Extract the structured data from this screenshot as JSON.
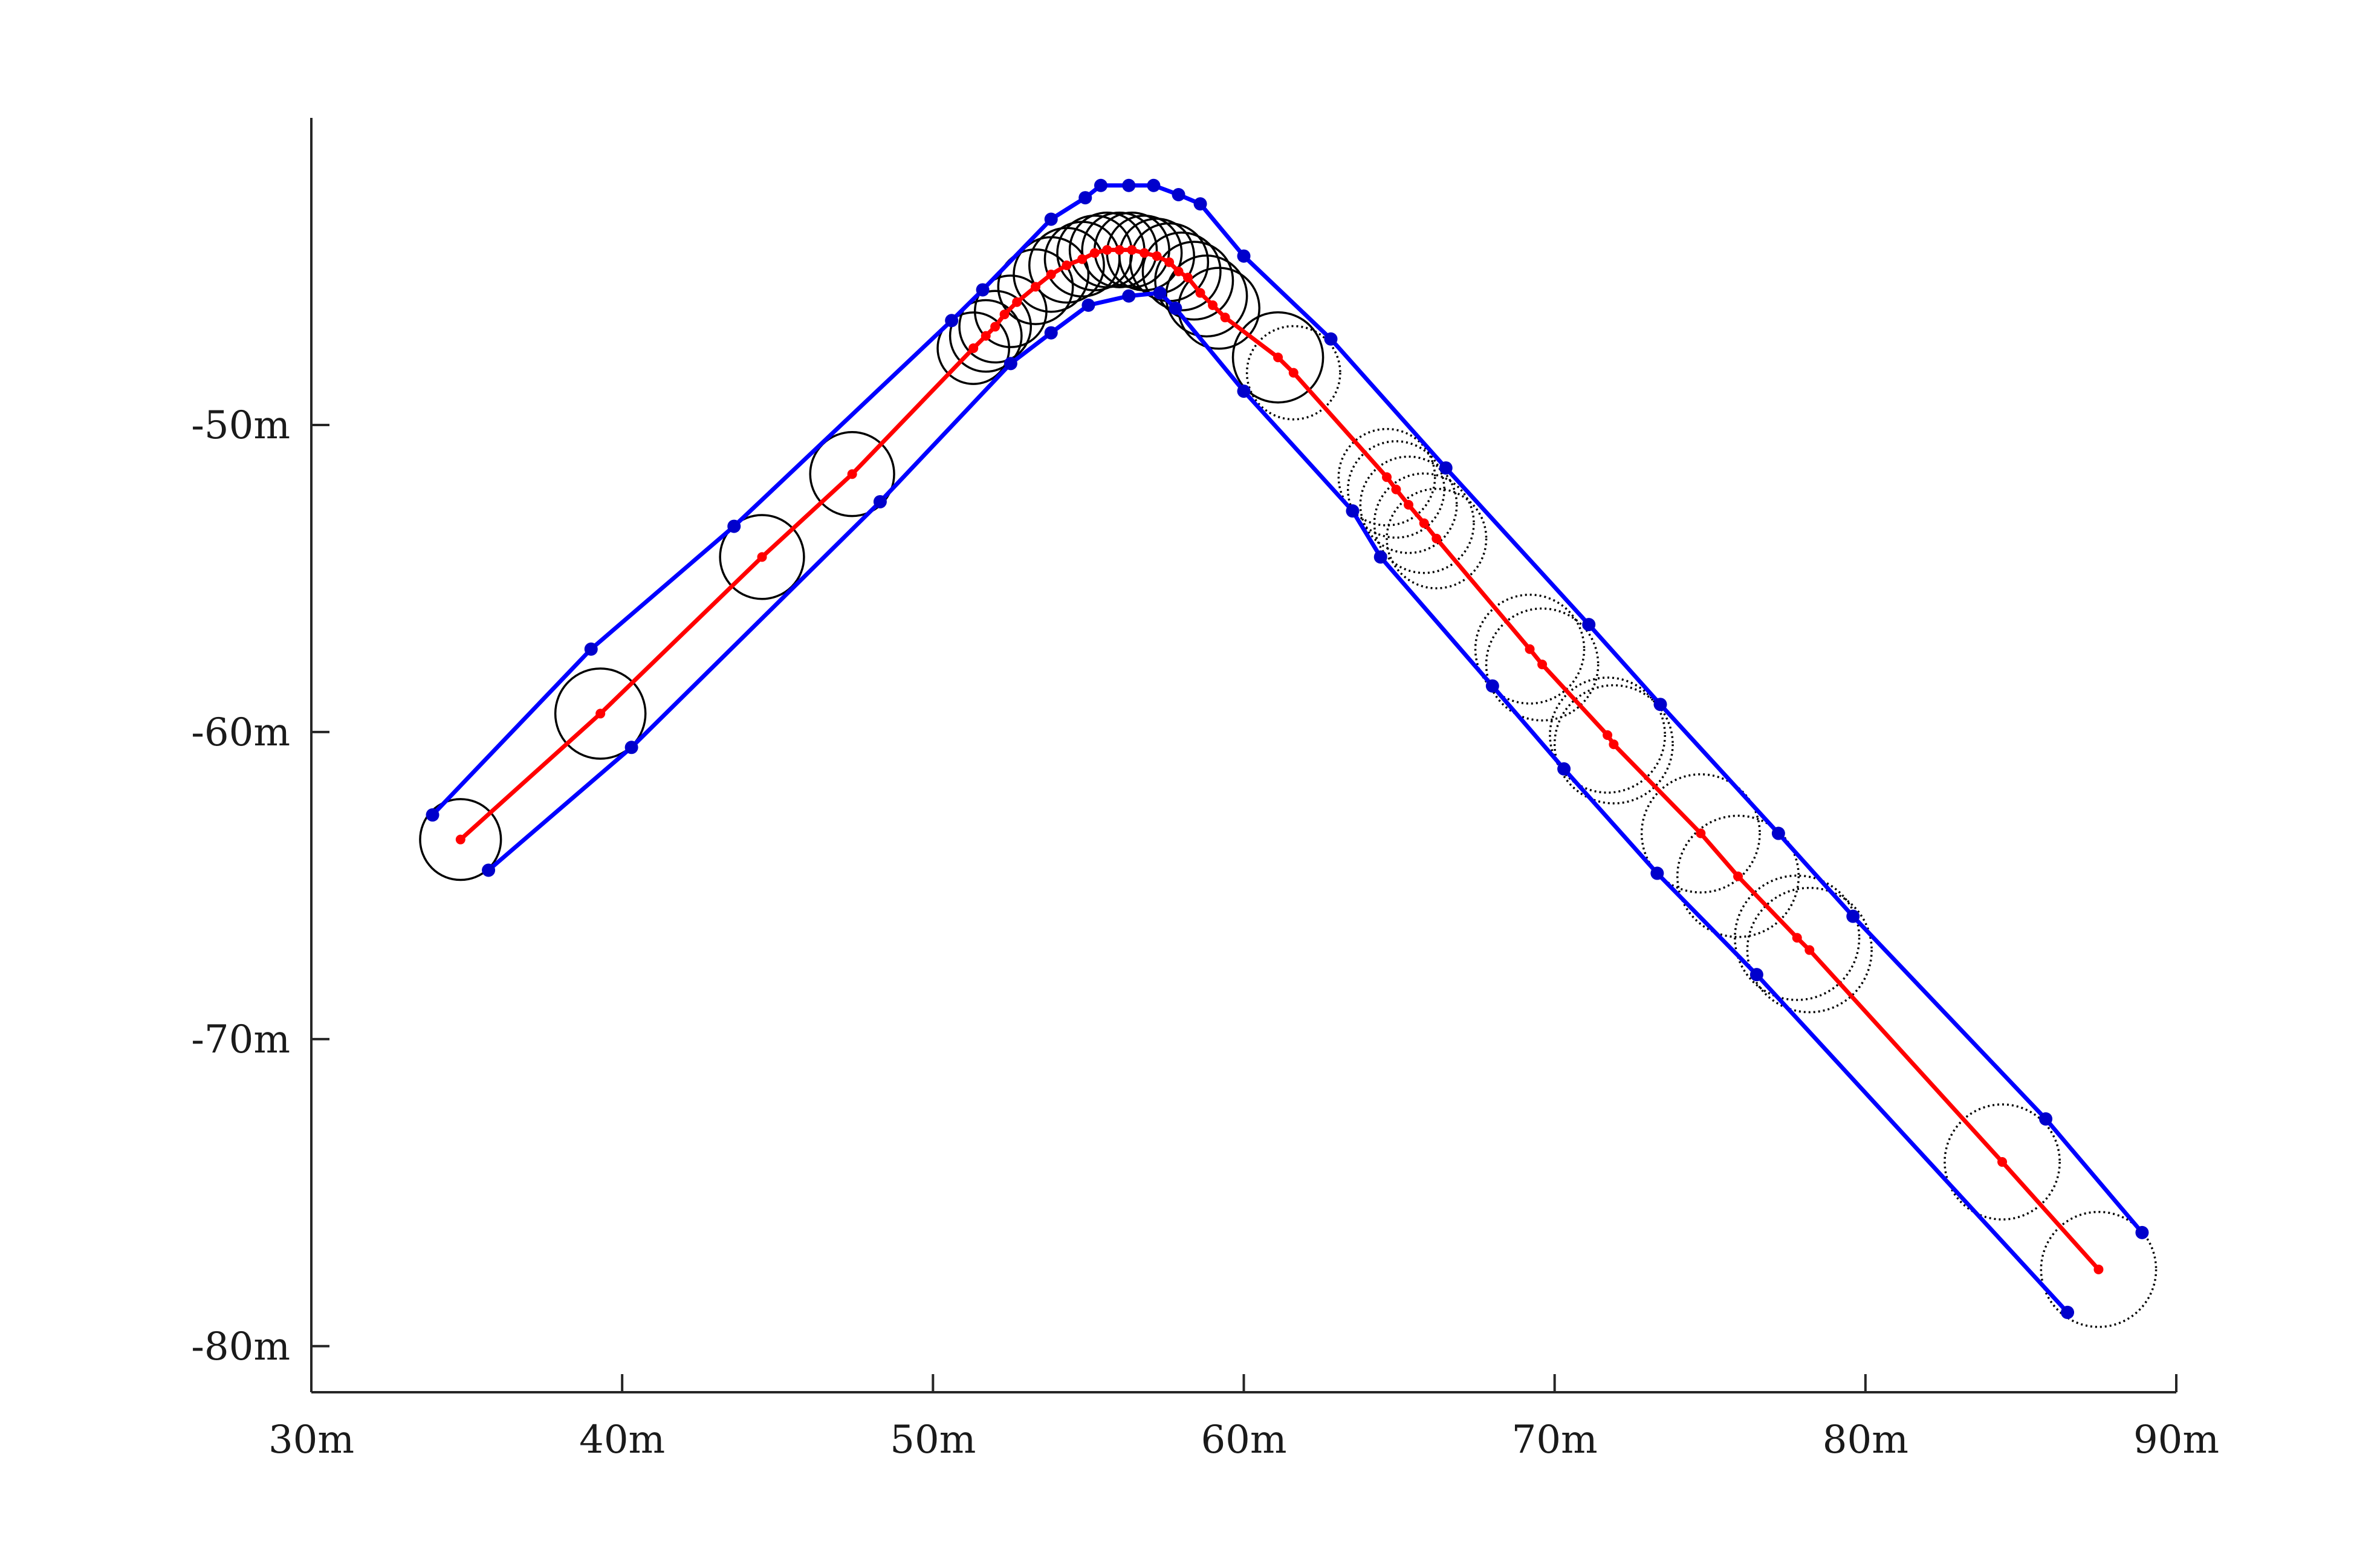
{
  "chart_data": {
    "type": "scatter",
    "title": "",
    "xlabel": "",
    "ylabel": "",
    "xlim": [
      30,
      90
    ],
    "ylim": [
      -81.5,
      -40
    ],
    "x_ticks": [
      30,
      40,
      50,
      60,
      70,
      80,
      90
    ],
    "y_ticks": [
      -80,
      -70,
      -60,
      -50
    ],
    "x_tick_labels": [
      "30m",
      "40m",
      "50m",
      "60m",
      "70m",
      "80m",
      "90m"
    ],
    "y_tick_labels": [
      "-80m",
      "-70m",
      "-60m",
      "-50m"
    ],
    "grid": false,
    "box": false,
    "colors": {
      "path": "#ff0000",
      "boundary": "#0000ff",
      "boundary_points": "#0000cc",
      "circles": "#000000",
      "axis": "#262626"
    },
    "series": [
      {
        "kind": "path",
        "x": [
          34.8,
          39.3,
          44.5,
          47.4,
          51.3,
          51.7,
          52.0,
          52.3,
          52.7,
          53.3,
          53.8,
          54.3,
          54.8,
          55.2,
          55.6,
          56.0,
          56.4,
          56.8,
          57.2,
          57.6,
          57.9,
          58.2,
          58.6,
          59.0,
          59.4,
          61.1,
          61.6,
          64.6,
          64.9,
          65.3,
          65.8,
          66.2,
          69.2,
          69.6,
          71.7,
          71.9,
          74.7,
          75.9,
          77.8,
          78.2,
          84.4,
          87.5
        ],
        "y": [
          -63.5,
          -59.4,
          -54.3,
          -51.6,
          -47.5,
          -47.1,
          -46.8,
          -46.4,
          -46.0,
          -45.5,
          -45.1,
          -44.8,
          -44.6,
          -44.4,
          -44.3,
          -44.3,
          -44.3,
          -44.4,
          -44.5,
          -44.7,
          -45.0,
          -45.2,
          -45.7,
          -46.1,
          -46.5,
          -47.8,
          -48.3,
          -51.7,
          -52.1,
          -52.6,
          -53.2,
          -53.7,
          -57.3,
          -57.8,
          -60.1,
          -60.4,
          -63.3,
          -64.7,
          -66.7,
          -67.1,
          -74.0,
          -77.5
        ]
      },
      {
        "kind": "boundary-left",
        "x": [
          33.9,
          39.0,
          43.6,
          50.6,
          51.6,
          53.8,
          54.9,
          55.4,
          56.3,
          57.1,
          57.9,
          58.6,
          60.0,
          62.8,
          66.5,
          71.1,
          73.4,
          77.2,
          79.6,
          85.8,
          88.9
        ],
        "y": [
          -62.7,
          -57.3,
          -53.3,
          -46.6,
          -45.6,
          -43.3,
          -42.6,
          -42.2,
          -42.2,
          -42.2,
          -42.5,
          -42.8,
          -44.5,
          -47.2,
          -51.4,
          -56.5,
          -59.1,
          -63.3,
          -66.0,
          -72.6,
          -76.3
        ]
      },
      {
        "kind": "boundary-right",
        "x": [
          35.7,
          40.3,
          48.3,
          52.5,
          53.8,
          55.0,
          56.3,
          57.3,
          57.8,
          60.0,
          63.5,
          64.4,
          68.0,
          70.3,
          73.3,
          76.5,
          86.5
        ],
        "y": [
          -64.5,
          -60.5,
          -52.5,
          -48.0,
          -47.0,
          -46.1,
          -45.8,
          -45.7,
          -46.2,
          -48.9,
          -52.8,
          -54.3,
          -58.5,
          -61.2,
          -64.6,
          -67.9,
          -78.9
        ]
      },
      {
        "kind": "circles",
        "cx": [
          34.8,
          39.3,
          44.5,
          47.4,
          51.3,
          51.7,
          52.0,
          52.5,
          53.3,
          53.8,
          54.3,
          54.8,
          55.2,
          55.6,
          56.0,
          56.4,
          56.8,
          57.2,
          57.6,
          58.0,
          58.4,
          58.8,
          59.2,
          61.1,
          61.6,
          64.6,
          64.9,
          65.3,
          65.8,
          66.2,
          69.2,
          69.6,
          71.7,
          71.9,
          74.7,
          75.9,
          77.8,
          78.2,
          84.4,
          87.5
        ],
        "cy": [
          -63.5,
          -59.4,
          -54.3,
          -51.6,
          -47.5,
          -47.1,
          -46.8,
          -46.3,
          -45.5,
          -45.1,
          -44.8,
          -44.6,
          -44.4,
          -44.3,
          -44.3,
          -44.3,
          -44.4,
          -44.5,
          -44.7,
          -45.0,
          -45.3,
          -45.8,
          -46.2,
          -47.8,
          -48.3,
          -51.7,
          -52.1,
          -52.6,
          -53.2,
          -53.7,
          -57.3,
          -57.8,
          -60.1,
          -60.4,
          -63.3,
          -64.7,
          -66.7,
          -67.1,
          -74.0,
          -77.5
        ],
        "r": [
          1.3,
          1.45,
          1.35,
          1.35,
          1.15,
          1.15,
          1.15,
          1.15,
          1.2,
          1.2,
          1.2,
          1.2,
          1.2,
          1.2,
          1.2,
          1.2,
          1.2,
          1.2,
          1.25,
          1.25,
          1.25,
          1.3,
          1.3,
          1.45,
          1.5,
          1.55,
          1.55,
          1.55,
          1.6,
          1.6,
          1.75,
          1.8,
          1.85,
          1.9,
          1.9,
          1.95,
          2.0,
          2.0,
          1.85,
          1.85
        ],
        "dotted_from_index": 24
      }
    ]
  }
}
